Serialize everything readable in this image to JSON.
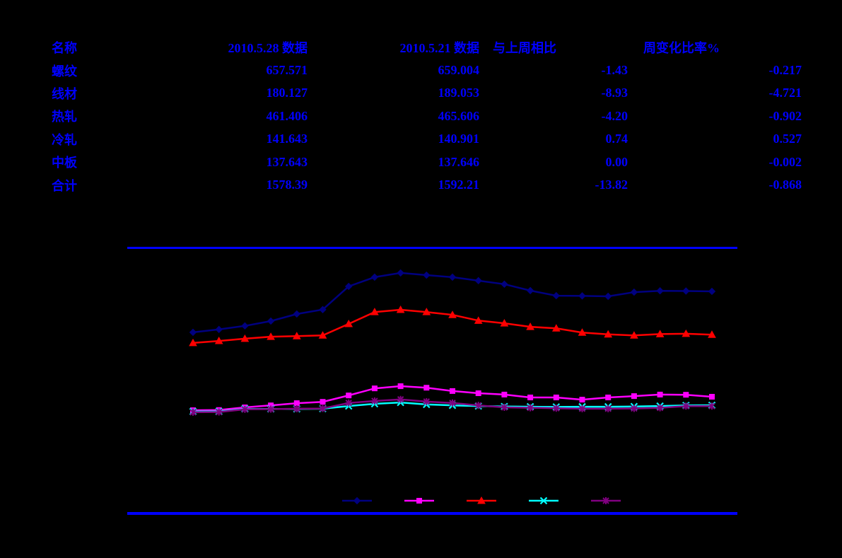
{
  "colors": {
    "background": "#000000",
    "table_text": "#0000ff",
    "frame_rule": "#0000ff"
  },
  "table": {
    "headers": [
      "名称",
      "2010.5.28 数据",
      "2010.5.21 数据",
      "与上周相比",
      "周变化比率%"
    ],
    "rows": [
      {
        "name": "螺纹",
        "cells": [
          "螺纹",
          "657.571",
          "659.004",
          "-1.43",
          "-0.217"
        ]
      },
      {
        "name": "线材",
        "cells": [
          "线材",
          "180.127",
          "189.053",
          "-8.93",
          "-4.721"
        ]
      },
      {
        "name": "热轧",
        "cells": [
          "热轧",
          "461.406",
          "465.606",
          "-4.20",
          "-0.902"
        ]
      },
      {
        "name": "冷轧",
        "cells": [
          "冷轧",
          "141.643",
          "140.901",
          "0.74",
          "0.527"
        ]
      },
      {
        "name": "中板",
        "cells": [
          "中板",
          "137.643",
          "137.646",
          "0.00",
          "-0.002"
        ]
      },
      {
        "name": "合计",
        "cells": [
          "合计",
          "1578.39",
          "1592.21",
          "-13.82",
          "-0.868"
        ]
      }
    ]
  },
  "chart_data": {
    "type": "line",
    "title": "",
    "xlabel": "",
    "ylabel": "",
    "x": [
      1,
      2,
      3,
      4,
      5,
      6,
      7,
      8,
      9,
      10,
      11,
      12,
      13,
      14,
      15,
      16,
      17,
      18,
      19,
      20,
      21
    ],
    "x_tick_labels_visible": false,
    "y_tick_labels_visible": false,
    "grid": false,
    "legend_position": "bottom",
    "legend_text_visible": false,
    "ylim_approx": [
      0,
      860
    ],
    "note": "weekly steel inventory series; last two points equal table columns 2010.5.21 and 2010.5.28; intermediate values estimated from pixels",
    "series": [
      {
        "name": "螺纹",
        "slug": "rebar",
        "color": "#000080",
        "marker": "diamond",
        "values": [
          472,
          485,
          501,
          523,
          555,
          575,
          680,
          722,
          741,
          731,
          722,
          706,
          690,
          661,
          638,
          637,
          635,
          654,
          660,
          659.004,
          657.571
        ]
      },
      {
        "name": "线材",
        "slug": "wire-rod",
        "color": "#ff00ff",
        "marker": "square",
        "values": [
          119,
          120,
          132,
          141,
          151,
          157,
          186,
          218,
          228,
          221,
          206,
          196,
          190,
          177,
          177,
          167,
          177,
          183,
          190,
          189.053,
          180.127
        ]
      },
      {
        "name": "热轧",
        "slug": "hot-rolled",
        "color": "#ff0000",
        "marker": "triangle",
        "values": [
          424,
          433,
          443,
          452,
          455,
          458,
          510,
          564,
          574,
          564,
          551,
          525,
          513,
          497,
          490,
          471,
          463,
          458,
          464,
          465.606,
          461.406
        ]
      },
      {
        "name": "冷轧",
        "slug": "cold-rolled",
        "color": "#00ffff",
        "marker": "x",
        "values": [
          113,
          113,
          125,
          125,
          125,
          126,
          138,
          148,
          154,
          145,
          141,
          138,
          136,
          135,
          134,
          135,
          135,
          136,
          138,
          140.901,
          141.643
        ]
      },
      {
        "name": "中板",
        "slug": "medium-plate",
        "color": "#800080",
        "marker": "asterisk",
        "values": [
          110,
          111,
          123,
          124,
          126,
          127,
          152,
          161,
          168,
          158,
          152,
          141,
          132,
          130,
          128,
          126,
          126,
          127,
          130,
          137.646,
          137.643
        ]
      }
    ]
  }
}
